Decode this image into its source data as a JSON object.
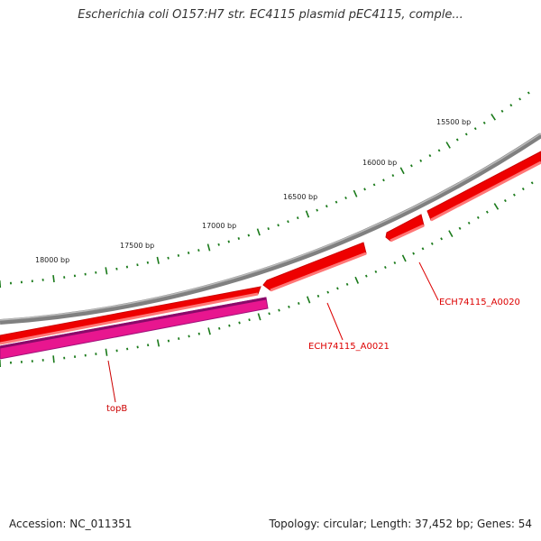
{
  "title": "Escherichia coli O157:H7 str. EC4115 plasmid pEC4115, comple...",
  "footer": {
    "accession": "Accession: NC_011351",
    "summary": "Topology: circular; Length: 37,452 bp; Genes: 54"
  },
  "ruler": {
    "labels": [
      "15500 bp",
      "16000 bp",
      "16500 bp",
      "17000 bp",
      "17500 bp",
      "18000 bp"
    ]
  },
  "genes": [
    {
      "name": "ECH74115_A0020",
      "color": "#dd0000"
    },
    {
      "name": "ECH74115_A0021",
      "color": "#dd0000"
    },
    {
      "name": "topB",
      "color": "#cc0000"
    }
  ],
  "colors": {
    "backbone": "#808080",
    "gene_forward": "#ee0000",
    "gene_reverse": "#e8168f",
    "tick": "#1a7a1a"
  }
}
